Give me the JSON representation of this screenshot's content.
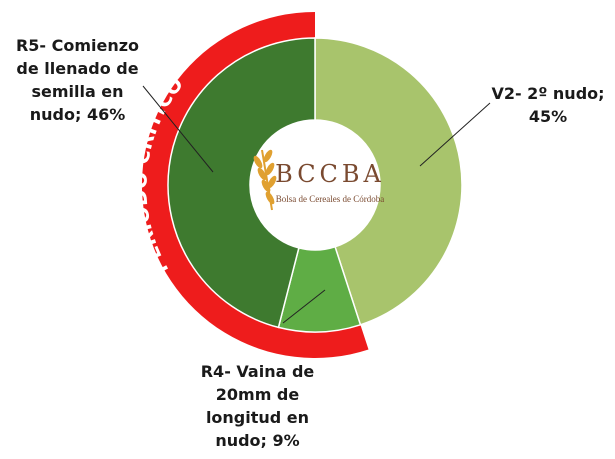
{
  "chart_data": {
    "type": "donut",
    "labels": [
      "V2- 2º nudo; 45%",
      "R4- Vaina de 20mm de longitud en nudo; 9%",
      "R5- Comienzo de llenado de semilla en nudo; 46%"
    ],
    "values": [
      45,
      9,
      46
    ],
    "colors": [
      "#a8c46c",
      "#5fad45",
      "#3e7a2f"
    ],
    "annotation": "PERÍODO CRÍTICO",
    "logo": {
      "title": "BCCBA",
      "subtitle": "Bolsa de Cereales de Córdoba"
    }
  }
}
